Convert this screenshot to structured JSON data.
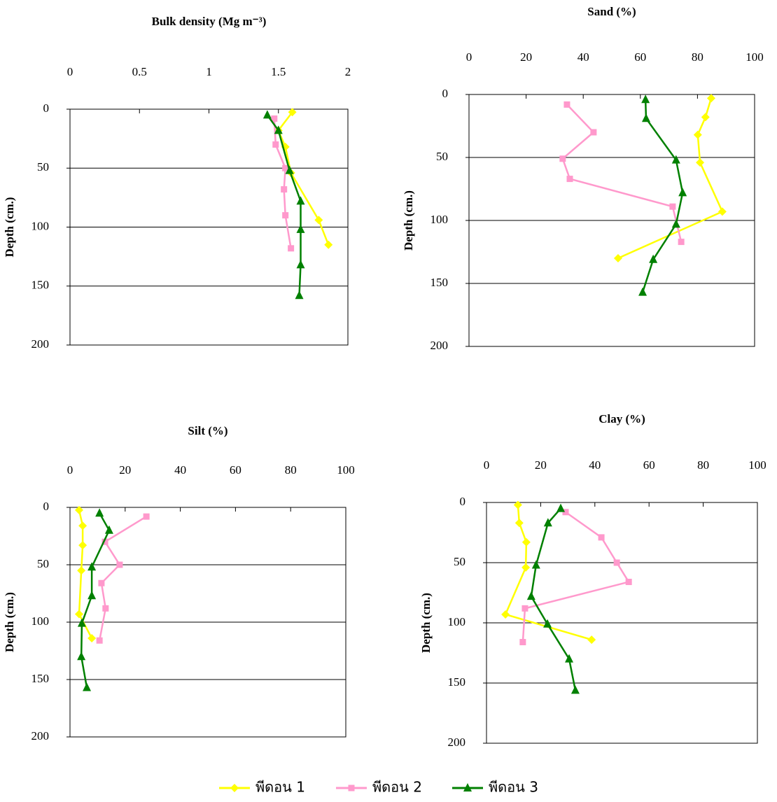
{
  "chart_data": [
    {
      "type": "line",
      "title": "Bulk density (Mg m⁻³)",
      "ylabel": "Depth (cm.)",
      "xlim": [
        0,
        2
      ],
      "xticks": [
        0,
        0.5,
        1,
        1.5,
        2
      ],
      "ylim": [
        0,
        200
      ],
      "yticks": [
        0,
        50,
        100,
        150,
        200
      ],
      "y_inverted": true,
      "grid": true,
      "series": [
        {
          "name": "พีดอน 1",
          "color": "#ffff00",
          "x": [
            1.6,
            1.5,
            1.55,
            1.59,
            1.79,
            1.86
          ],
          "y": [
            2.5,
            18,
            32,
            54,
            94,
            115
          ]
        },
        {
          "name": "พีดอน 2",
          "color": "#ff99cc",
          "x": [
            1.47,
            1.48,
            1.55,
            1.54,
            1.55,
            1.59
          ],
          "y": [
            8,
            30,
            50,
            68,
            90,
            118
          ]
        },
        {
          "name": "พีดอน 3",
          "color": "#008000",
          "x": [
            1.42,
            1.5,
            1.58,
            1.66,
            1.66,
            1.66,
            1.65
          ],
          "y": [
            5,
            18,
            52,
            78,
            102,
            132,
            158
          ]
        }
      ]
    },
    {
      "type": "line",
      "title": "Sand (%)",
      "ylabel": "Depth (cm.)",
      "xlim": [
        0,
        100
      ],
      "xticks": [
        0,
        20,
        40,
        60,
        80,
        100
      ],
      "ylim": [
        0,
        200
      ],
      "yticks": [
        0,
        50,
        100,
        150,
        200
      ],
      "y_inverted": true,
      "grid": true,
      "series": [
        {
          "color": "#ffff00",
          "x": [
            84.8,
            82.8,
            80.1,
            80.9,
            88.7,
            52.2
          ],
          "y": [
            3,
            18,
            32,
            54,
            93,
            130
          ]
        },
        {
          "color": "#ff99cc",
          "x": [
            34.3,
            43.6,
            32.8,
            35.3,
            71.3,
            74.3
          ],
          "y": [
            8,
            30,
            51,
            67,
            89,
            117
          ]
        },
        {
          "color": "#008000",
          "x": [
            61.8,
            62,
            72.5,
            74.8,
            72.5,
            64.5,
            60.8
          ],
          "y": [
            4,
            19,
            52,
            78,
            103,
            131,
            157
          ]
        }
      ]
    },
    {
      "type": "line",
      "title": "Silt (%)",
      "ylabel": "Depth (cm.)",
      "xlim": [
        0,
        100
      ],
      "xticks": [
        0,
        20,
        40,
        60,
        80,
        100
      ],
      "ylim": [
        0,
        200
      ],
      "yticks": [
        0,
        50,
        100,
        150,
        200
      ],
      "y_inverted": true,
      "grid": true,
      "series": [
        {
          "color": "#ffff00",
          "x": [
            3.3,
            4.6,
            4.6,
            4.1,
            3.3,
            7.9
          ],
          "y": [
            2.4,
            16,
            33,
            55,
            93,
            114
          ]
        },
        {
          "color": "#ff99cc",
          "x": [
            27.7,
            12.7,
            18,
            11.4,
            12.9,
            10.7
          ],
          "y": [
            8,
            30,
            50,
            66,
            88,
            116
          ]
        },
        {
          "color": "#008000",
          "x": [
            10.7,
            14.2,
            7.9,
            7.9,
            4.3,
            4.1,
            6.1
          ],
          "y": [
            5,
            20,
            52,
            77,
            101,
            130,
            157
          ]
        }
      ]
    },
    {
      "type": "line",
      "title": "Clay (%)",
      "ylabel": "Depth (cm.)",
      "xlim": [
        0,
        100
      ],
      "xticks": [
        0,
        20,
        40,
        60,
        80,
        100
      ],
      "ylim": [
        0,
        200
      ],
      "yticks": [
        0,
        50,
        100,
        150,
        200
      ],
      "y_inverted": true,
      "grid": true,
      "series": [
        {
          "color": "#ffff00",
          "x": [
            11.6,
            12.1,
            14.7,
            14.5,
            7,
            38.8
          ],
          "y": [
            2,
            17,
            33,
            54,
            93,
            114
          ]
        },
        {
          "color": "#ff99cc",
          "x": [
            29.2,
            42.4,
            48.1,
            52.5,
            14.2,
            13.4
          ],
          "y": [
            8,
            29,
            50,
            66,
            88,
            116
          ]
        },
        {
          "color": "#008000",
          "x": [
            27.4,
            22.7,
            18.3,
            16.5,
            22.5,
            30.5,
            32.8
          ],
          "y": [
            5,
            17,
            52,
            78,
            101,
            130,
            156
          ]
        }
      ]
    }
  ]
}
